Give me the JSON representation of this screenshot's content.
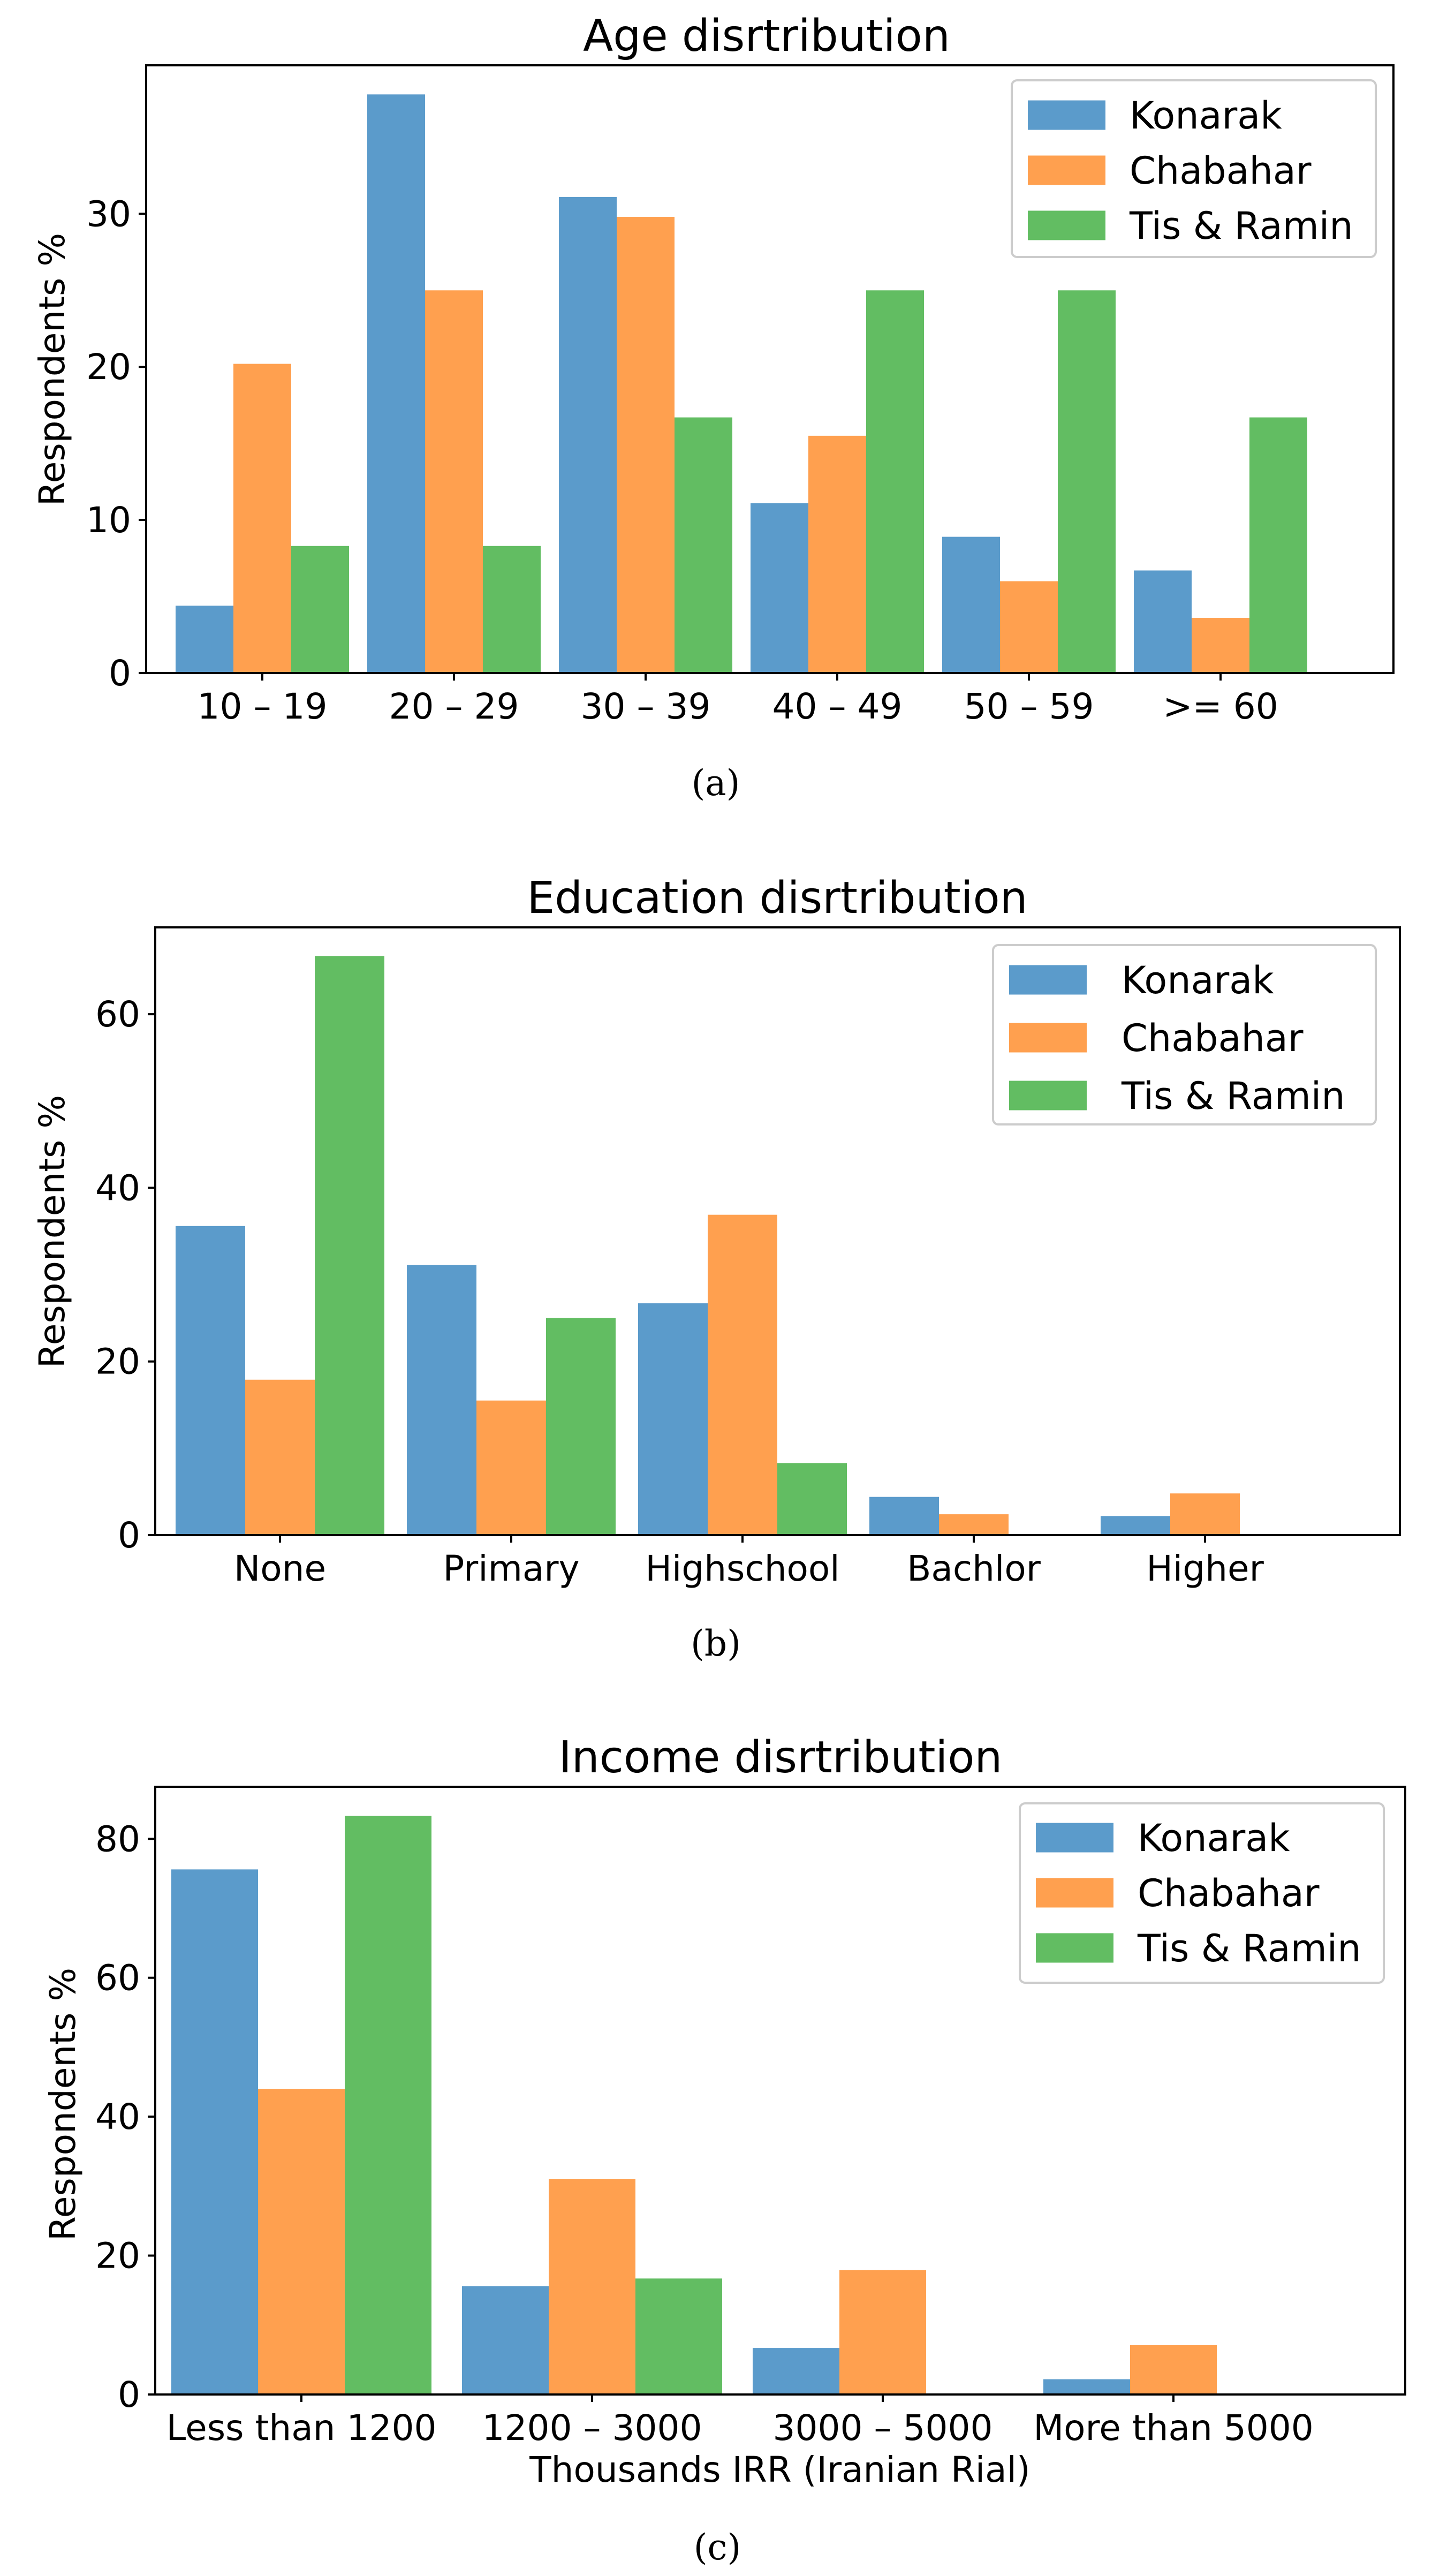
{
  "chart_data": [
    {
      "type": "bar",
      "title": "Age disrtribution",
      "xlabel": "",
      "ylabel": "Respondents %",
      "categories": [
        "10 – 19",
        "20 – 29",
        "30 – 39",
        "40 – 49",
        "50 – 59",
        ">= 60"
      ],
      "series": [
        {
          "name": "Konarak",
          "color": "#5b9bcb",
          "values": [
            4.4,
            37.8,
            31.1,
            11.1,
            8.9,
            6.7
          ]
        },
        {
          "name": "Chabahar",
          "color": "#ffa04f",
          "values": [
            20.2,
            25.0,
            29.8,
            15.5,
            6.0,
            3.6
          ]
        },
        {
          "name": "Tis & Ramin",
          "color": "#62bd62",
          "values": [
            8.3,
            8.3,
            16.7,
            25.0,
            25.0,
            16.7
          ]
        }
      ],
      "ylim": [
        0,
        39.7
      ],
      "yticks": [
        0,
        10,
        20,
        30
      ],
      "legend": "top-right",
      "caption": "(a)"
    },
    {
      "type": "bar",
      "title": "Education disrtribution",
      "xlabel": "",
      "ylabel": "Respondents %",
      "categories": [
        "None",
        "Primary",
        "Highschool",
        "Bachlor",
        "Higher"
      ],
      "series": [
        {
          "name": "Konarak",
          "color": "#5b9bcb",
          "values": [
            35.6,
            31.1,
            26.7,
            4.4,
            2.2
          ]
        },
        {
          "name": "Chabahar",
          "color": "#ffa04f",
          "values": [
            17.9,
            15.5,
            36.9,
            2.4,
            4.8
          ]
        },
        {
          "name": "Tis & Ramin",
          "color": "#62bd62",
          "values": [
            66.7,
            25.0,
            8.3,
            0,
            0
          ]
        }
      ],
      "ylim": [
        0,
        70
      ],
      "yticks": [
        0,
        20,
        40,
        60
      ],
      "legend": "top-right",
      "caption": "(b)"
    },
    {
      "type": "bar",
      "title": "Income disrtribution",
      "xlabel": "Thousands IRR (Iranian Rial)",
      "ylabel": "Respondents %",
      "categories": [
        "Less than 1200",
        "1200 – 3000",
        "3000 – 5000",
        "More than 5000"
      ],
      "series": [
        {
          "name": "Konarak",
          "color": "#5b9bcb",
          "values": [
            75.6,
            15.6,
            6.7,
            2.2
          ]
        },
        {
          "name": "Chabahar",
          "color": "#ffa04f",
          "values": [
            44.0,
            31.0,
            17.9,
            7.1
          ]
        },
        {
          "name": "Tis & Ramin",
          "color": "#62bd62",
          "values": [
            83.3,
            16.7,
            0,
            0
          ]
        }
      ],
      "ylim": [
        0,
        87.5
      ],
      "yticks": [
        0,
        20,
        40,
        60,
        80
      ],
      "legend": "top-right",
      "caption": "(c)"
    }
  ]
}
